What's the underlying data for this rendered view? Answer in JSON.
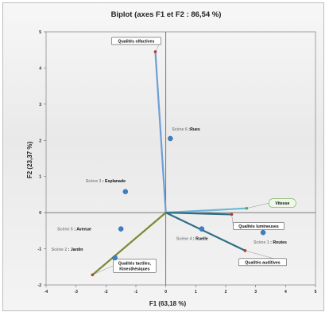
{
  "chart_data": {
    "type": "scatter",
    "subtype": "biplot",
    "title": "Biplot (axes F1 et F2 : 86,54 %)",
    "xlabel": "F1 (63,18 %)",
    "ylabel": "F2 (23,37 %)",
    "xlim": [
      -4,
      5
    ],
    "ylim": [
      -2,
      5
    ],
    "xticks": [
      "-4",
      "-3",
      "-2",
      "-1",
      "0",
      "1",
      "2",
      "3",
      "4",
      "5"
    ],
    "yticks": [
      "-2",
      "-1",
      "0",
      "1",
      "2",
      "3",
      "4",
      "5"
    ],
    "grid": false,
    "observations": [
      {
        "prefix": "Scène 6",
        "name": " :Rues",
        "x": 0.15,
        "y": 2.05
      },
      {
        "prefix": "Scène 3",
        "name": " : Esplanade",
        "x": -1.35,
        "y": 0.58
      },
      {
        "prefix": "Scène 5",
        "name": " : Avenue",
        "x": -1.5,
        "y": -0.45
      },
      {
        "prefix": "Scène 2",
        "name": " : Jardin",
        "x": -1.7,
        "y": -1.25
      },
      {
        "prefix": "Scène 4",
        "name": " : Ruelle",
        "x": 1.2,
        "y": -0.45
      },
      {
        "prefix": "Scène 1",
        "name": " : Routes",
        "x": 3.25,
        "y": -0.55
      }
    ],
    "variables": [
      {
        "name": "Qualités olfactives",
        "x": -0.35,
        "y": 4.45,
        "color": "#6e9ed6"
      },
      {
        "name": "Vitesse",
        "x": 2.7,
        "y": 0.12,
        "color": "#6fb7d8"
      },
      {
        "name": "Qualités lumineuses",
        "x": 2.2,
        "y": -0.05,
        "color": "#2f6e86"
      },
      {
        "name": "Qualités auditives",
        "x": 2.65,
        "y": -1.05,
        "color": "#2f6e86"
      },
      {
        "name": "Qualités tactiles, Kinesthésiques",
        "x": -2.45,
        "y": -1.72,
        "color": "#7a8a32"
      }
    ],
    "colors": {
      "observation_point": "#3f7fc4",
      "variable_tip": "#b33b2c",
      "vitesse_tip": "#4cb84c",
      "vitesse_border": "#6aa84f",
      "axis_line": "#555555"
    }
  }
}
